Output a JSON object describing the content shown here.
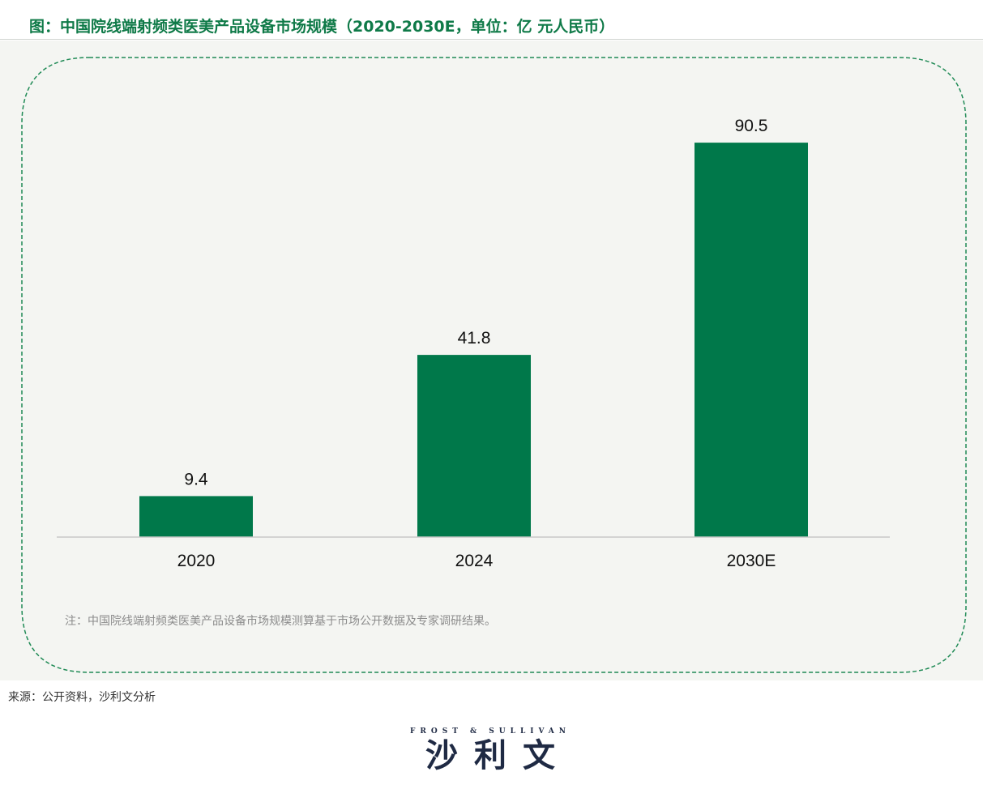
{
  "header": {
    "title": "图：中国院线端射频类医美产品设备市场规模（2020-2030E，单位：亿 元人民币）"
  },
  "chart_data": {
    "type": "bar",
    "title": "图：中国院线端射频类医美产品设备市场规模（2020-2030E，单位：亿 元人民币）",
    "categories": [
      "2020",
      "2024",
      "2030E"
    ],
    "values": [
      9.4,
      41.8,
      90.5
    ],
    "data_labels": [
      "9.4",
      "41.8",
      "90.5"
    ],
    "ylim": [
      0,
      100
    ],
    "grid": false,
    "legend": "none",
    "bar_color": "#00784a"
  },
  "footer": {
    "note": "注：中国院线端射频类医美产品设备市场规模测算基于市场公开数据及专家调研结果。",
    "source": "来源：公开资料，沙利文分析"
  },
  "logo": {
    "english": "FROST & SULLIVAN",
    "chinese": "沙利文"
  },
  "colors": {
    "accent": "#0f7a48",
    "bar": "#00784a",
    "border": "#1f8a55"
  }
}
